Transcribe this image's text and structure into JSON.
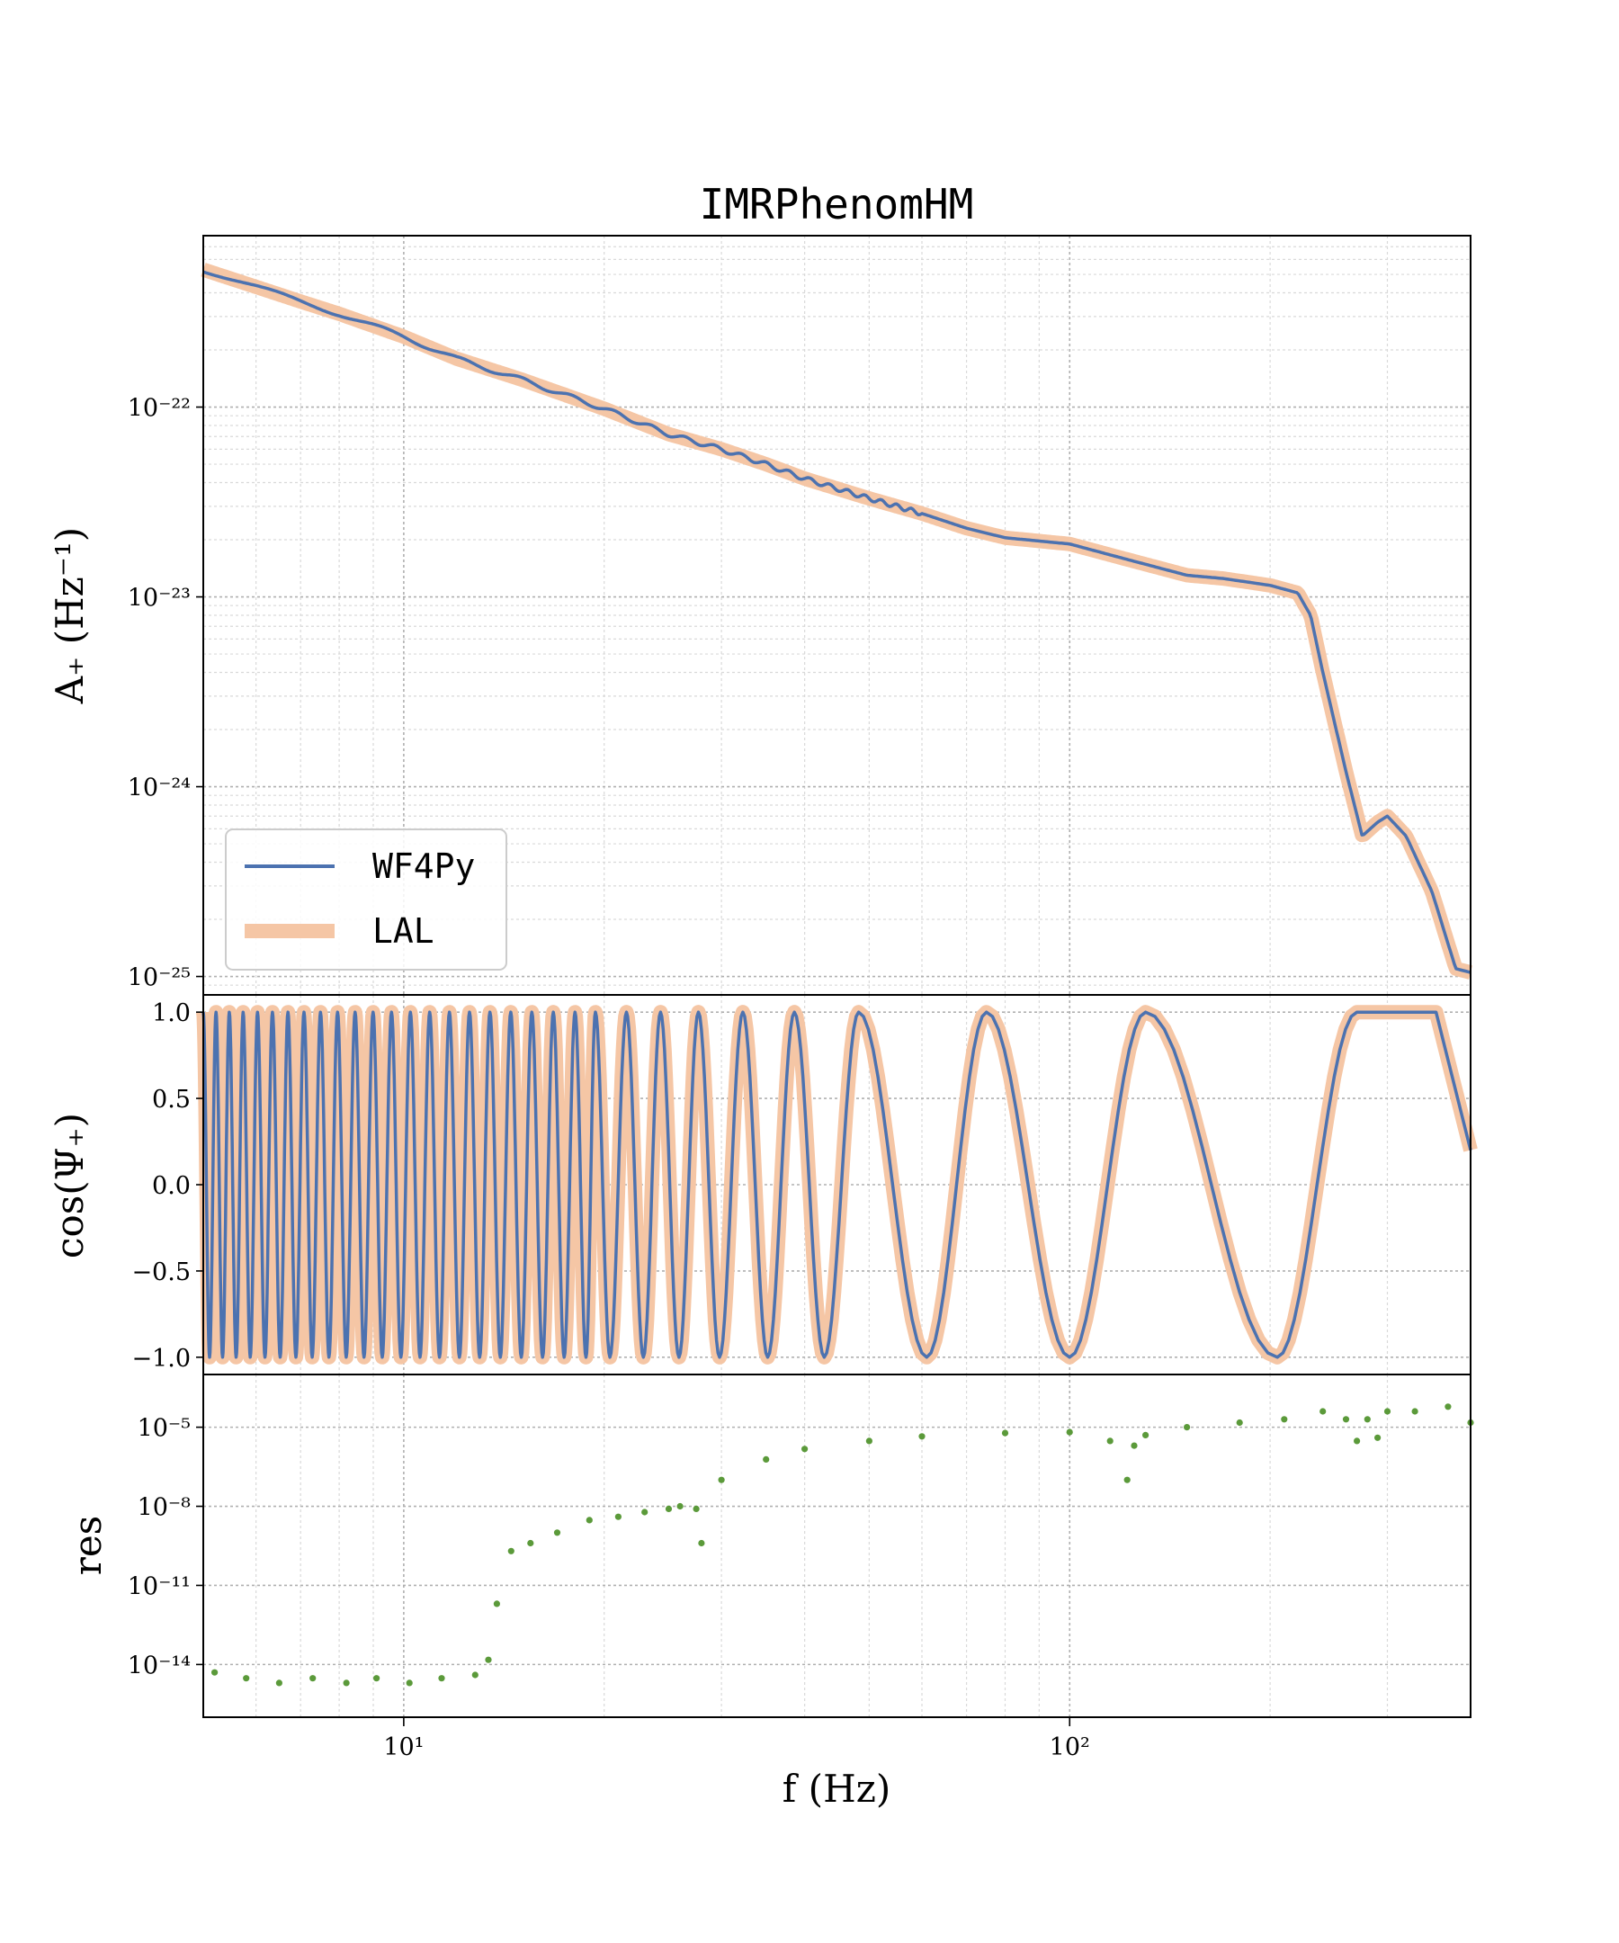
{
  "chart_data": [
    {
      "panel": "amplitude",
      "type": "line",
      "title": "IMRPhenomHM",
      "ylabel": "A₊ (Hz⁻¹)",
      "xscale": "log",
      "yscale": "log",
      "xlim": [
        5,
        400
      ],
      "ylim": [
        8e-26,
        8e-22
      ],
      "y_ticks": [
        1e-22,
        1e-23,
        1e-24,
        1e-25
      ],
      "y_tick_labels": [
        "10⁻²²",
        "10⁻²³",
        "10⁻²⁴",
        "10⁻²⁵"
      ],
      "grid": true,
      "legend": {
        "placement": "lower-left",
        "entries": [
          "WF4Py",
          "LAL"
        ]
      },
      "series": [
        {
          "name": "WF4Py",
          "color": "#4c72b0",
          "x": [
            5,
            6,
            7,
            8,
            10,
            12,
            15,
            20,
            25,
            30,
            35,
            40,
            50,
            60,
            70,
            80,
            100,
            120,
            150,
            170,
            200,
            220,
            230,
            240,
            260,
            275,
            290,
            300,
            320,
            350,
            380,
            400
          ],
          "y": [
            5.3e-22,
            4.3e-22,
            3.6e-22,
            3.1e-22,
            2.35e-22,
            1.8e-22,
            1.4e-22,
            9.8e-23,
            7.2e-23,
            6e-23,
            5e-23,
            4.2e-23,
            3.3e-23,
            2.75e-23,
            2.3e-23,
            2.05e-23,
            1.9e-23,
            1.6e-23,
            1.3e-23,
            1.25e-23,
            1.15e-23,
            1.05e-23,
            8e-24,
            4e-24,
            1.2e-24,
            5.5e-25,
            6.5e-25,
            7e-25,
            5.5e-25,
            2.8e-25,
            1.1e-25,
            1.05e-25
          ]
        },
        {
          "name": "LAL",
          "color": "#f5c6a5",
          "x": [
            5,
            6,
            7,
            8,
            10,
            12,
            15,
            20,
            25,
            30,
            35,
            40,
            50,
            60,
            70,
            80,
            100,
            120,
            150,
            170,
            200,
            220,
            230,
            240,
            260,
            275,
            290,
            300,
            320,
            350,
            380,
            400
          ],
          "y": [
            5.3e-22,
            4.3e-22,
            3.6e-22,
            3.1e-22,
            2.35e-22,
            1.8e-22,
            1.4e-22,
            9.8e-23,
            7.2e-23,
            6e-23,
            5e-23,
            4.2e-23,
            3.3e-23,
            2.75e-23,
            2.3e-23,
            2.05e-23,
            1.9e-23,
            1.6e-23,
            1.3e-23,
            1.25e-23,
            1.15e-23,
            1.05e-23,
            8e-24,
            4e-24,
            1.2e-24,
            5.5e-25,
            6.5e-25,
            7e-25,
            5.5e-25,
            2.8e-25,
            1.1e-25,
            1.05e-25
          ]
        }
      ]
    },
    {
      "panel": "phase",
      "type": "line",
      "ylabel": "cos(Ψ₊)",
      "xscale": "log",
      "xlim": [
        5,
        400
      ],
      "ylim": [
        -1.1,
        1.1
      ],
      "y_ticks": [
        1.0,
        0.5,
        0.0,
        -0.5,
        -1.0
      ],
      "y_tick_labels": [
        "1.0",
        "0.5",
        "0.0",
        "−0.5",
        "−1.0"
      ],
      "grid": true,
      "oscillation_peak_frequencies": [
        19.4,
        21.6,
        24.3,
        27.7,
        32.3,
        38.6,
        48.2,
        75.0,
        130.0,
        270.0,
        355.0
      ],
      "oscillation_trough_frequencies": [
        20.4,
        22.9,
        25.9,
        29.8,
        35.2,
        42.8,
        61.0,
        100.0,
        205.0
      ],
      "series": [
        {
          "name": "WF4Py",
          "color": "#4c72b0"
        },
        {
          "name": "LAL",
          "color": "#f5c6a5"
        }
      ]
    },
    {
      "panel": "residual",
      "type": "scatter",
      "ylabel": "res",
      "xlabel": "f (Hz)",
      "xscale": "log",
      "yscale": "log",
      "xlim": [
        5,
        400
      ],
      "ylim": [
        1e-16,
        0.001
      ],
      "y_ticks": [
        1e-05,
        1e-08,
        1e-11,
        1e-14
      ],
      "y_tick_labels": [
        "10⁻⁵",
        "10⁻⁸",
        "10⁻¹¹",
        "10⁻¹⁴"
      ],
      "x_ticks": [
        10,
        100
      ],
      "x_tick_labels": [
        "10¹",
        "10²"
      ],
      "grid": true,
      "color": "#5b9a3a",
      "x": [
        5.2,
        5.8,
        6.5,
        7.3,
        8.2,
        9.1,
        10.2,
        11.4,
        12.8,
        13.4,
        13.8,
        14.5,
        15.5,
        17,
        19,
        21,
        23,
        25,
        26,
        27.5,
        28,
        30,
        35,
        40,
        50,
        60,
        80,
        100,
        115,
        122,
        125,
        130,
        150,
        180,
        210,
        240,
        260,
        270,
        280,
        290,
        300,
        330,
        370,
        400
      ],
      "y": [
        5e-15,
        3e-15,
        2e-15,
        3e-15,
        2e-15,
        3e-15,
        2e-15,
        3e-15,
        4e-15,
        1.5e-14,
        2e-12,
        2e-10,
        4e-10,
        1e-09,
        3e-09,
        4e-09,
        6e-09,
        8e-09,
        1e-08,
        8e-09,
        4e-10,
        1e-07,
        6e-07,
        1.5e-06,
        3e-06,
        4.5e-06,
        6e-06,
        6.5e-06,
        3e-06,
        1e-07,
        2e-06,
        5e-06,
        1e-05,
        1.5e-05,
        2e-05,
        4e-05,
        2e-05,
        3e-06,
        2e-05,
        4e-06,
        4e-05,
        4e-05,
        6e-05,
        1.5e-05
      ]
    }
  ]
}
